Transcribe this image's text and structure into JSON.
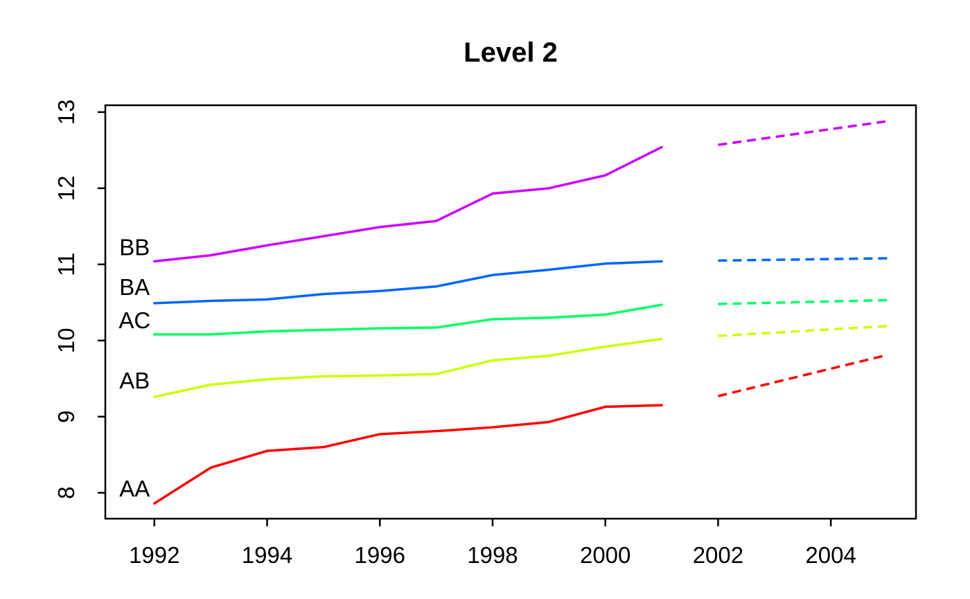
{
  "chart_data": {
    "type": "line",
    "title": "Level 2",
    "xlabel": "",
    "ylabel": "",
    "grid": false,
    "legend_position": "inline-left-labels",
    "x": [
      1992,
      1993,
      1994,
      1995,
      1996,
      1997,
      1998,
      1999,
      2000,
      2001
    ],
    "forecast_x": [
      2002,
      2005
    ],
    "x_ticks": [
      1992,
      1994,
      1996,
      1998,
      2000,
      2002,
      2004
    ],
    "y_ticks": [
      8,
      9,
      10,
      11,
      12,
      13
    ],
    "xlim": [
      1991.13,
      2005.51
    ],
    "ylim": [
      7.66,
      13.09
    ],
    "line_styles": {
      "history": "solid",
      "forecast": "dashed"
    },
    "series": [
      {
        "name": "AA",
        "color": "#FF0000",
        "values": [
          7.86,
          8.33,
          8.55,
          8.6,
          8.77,
          8.81,
          8.86,
          8.93,
          9.13,
          9.15
        ],
        "forecast": [
          9.27,
          9.81
        ],
        "label": {
          "x": 1991.65,
          "y": 8.05
        }
      },
      {
        "name": "AB",
        "color": "#CCFF00",
        "values": [
          9.26,
          9.42,
          9.49,
          9.53,
          9.54,
          9.56,
          9.74,
          9.8,
          9.92,
          10.02
        ],
        "forecast": [
          10.06,
          10.19
        ],
        "label": {
          "x": 1991.65,
          "y": 9.47
        }
      },
      {
        "name": "AC",
        "color": "#00FF66",
        "values": [
          10.08,
          10.08,
          10.12,
          10.14,
          10.16,
          10.17,
          10.28,
          10.3,
          10.34,
          10.47
        ],
        "forecast": [
          10.48,
          10.53
        ],
        "label": {
          "x": 1991.65,
          "y": 10.26
        }
      },
      {
        "name": "BA",
        "color": "#0066FF",
        "values": [
          10.49,
          10.52,
          10.54,
          10.61,
          10.65,
          10.71,
          10.86,
          10.93,
          11.01,
          11.04
        ],
        "forecast": [
          11.05,
          11.08
        ],
        "label": {
          "x": 1991.65,
          "y": 10.7
        }
      },
      {
        "name": "BB",
        "color": "#CC00FF",
        "values": [
          11.04,
          11.12,
          11.25,
          11.37,
          11.49,
          11.57,
          11.93,
          12.0,
          12.17,
          12.54
        ],
        "forecast": [
          12.57,
          12.88
        ],
        "label": {
          "x": 1991.65,
          "y": 11.22
        }
      }
    ]
  }
}
